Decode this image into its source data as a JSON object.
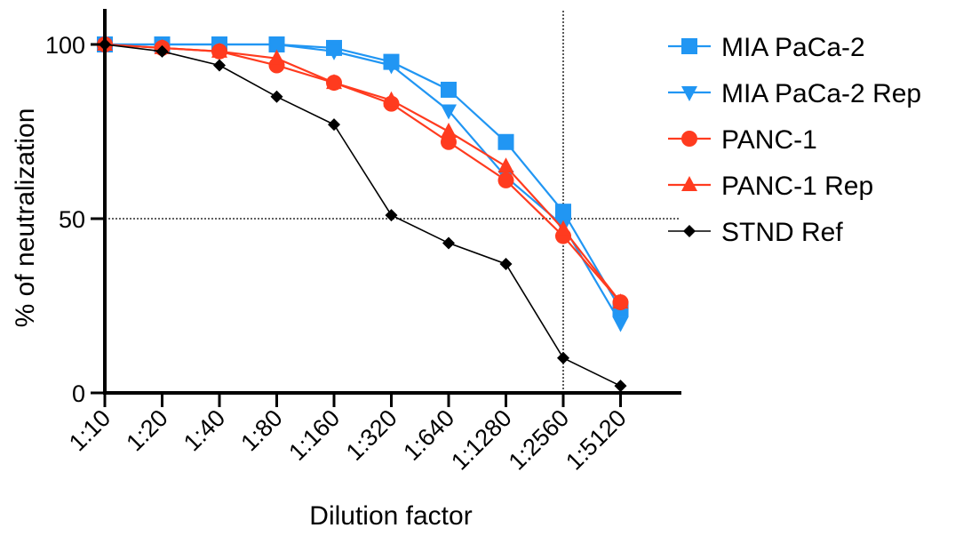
{
  "chart_data": {
    "type": "line",
    "xlabel": "Dilution factor",
    "ylabel": "% of neutralization",
    "categories": [
      "1:10",
      "1:20",
      "1:40",
      "1:80",
      "1:160",
      "1:320",
      "1:640",
      "1:1280",
      "1:2560",
      "1:5120"
    ],
    "ylim": [
      0,
      100
    ],
    "yticks": [
      0,
      50,
      100
    ],
    "reference_lines": {
      "y": 50,
      "x": "1:2560"
    },
    "legend_position": "right",
    "grid": false,
    "series": [
      {
        "name": "MIA PaCa-2",
        "color": "#2196F3",
        "marker": "square",
        "values": [
          100,
          100,
          100,
          100,
          99,
          95,
          87,
          72,
          52,
          24
        ]
      },
      {
        "name": "MIA PaCa-2 Rep",
        "color": "#2196F3",
        "marker": "triangle-down",
        "values": [
          100,
          100,
          100,
          100,
          98,
          94,
          81,
          62,
          48,
          20
        ]
      },
      {
        "name": "PANC-1",
        "color": "#FF3B1F",
        "marker": "circle",
        "values": [
          100,
          99,
          98,
          94,
          89,
          83,
          72,
          61,
          45,
          26
        ]
      },
      {
        "name": "PANC-1 Rep",
        "color": "#FF3B1F",
        "marker": "triangle-up",
        "values": [
          100,
          99,
          98,
          96,
          89,
          84,
          75,
          65,
          47,
          26
        ]
      },
      {
        "name": "STND Ref",
        "color": "#000000",
        "marker": "diamond",
        "values": [
          100,
          98,
          94,
          85,
          77,
          51,
          43,
          37,
          10,
          2
        ]
      }
    ]
  }
}
